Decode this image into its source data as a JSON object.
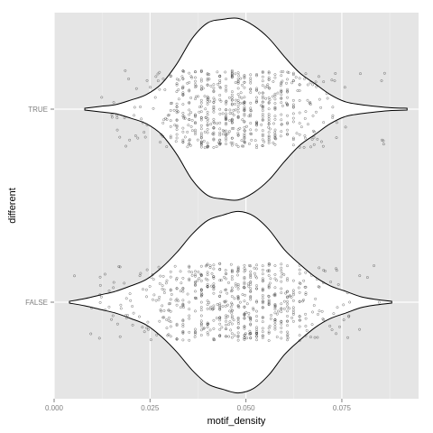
{
  "chart_data": {
    "type": "violin",
    "xlabel": "motif_density",
    "ylabel": "different",
    "xlim": [
      0.0,
      0.095
    ],
    "x_ticks": [
      0.0,
      0.025,
      0.05,
      0.075
    ],
    "x_tick_labels": [
      "0.000",
      "0.025",
      "0.050",
      "0.075"
    ],
    "categories": [
      "TRUE",
      "FALSE"
    ],
    "grid": true,
    "overlay": "jittered points",
    "series": [
      {
        "category": "TRUE",
        "range": [
          0.008,
          0.092
        ],
        "density": [
          [
            0.008,
            0.01
          ],
          [
            0.012,
            0.03
          ],
          [
            0.016,
            0.05
          ],
          [
            0.02,
            0.1
          ],
          [
            0.024,
            0.16
          ],
          [
            0.028,
            0.28
          ],
          [
            0.032,
            0.5
          ],
          [
            0.036,
            0.78
          ],
          [
            0.04,
            0.95
          ],
          [
            0.044,
            0.99
          ],
          [
            0.048,
            1.0
          ],
          [
            0.052,
            0.92
          ],
          [
            0.056,
            0.78
          ],
          [
            0.06,
            0.58
          ],
          [
            0.064,
            0.4
          ],
          [
            0.068,
            0.28
          ],
          [
            0.072,
            0.16
          ],
          [
            0.076,
            0.08
          ],
          [
            0.08,
            0.05
          ],
          [
            0.084,
            0.03
          ],
          [
            0.088,
            0.015
          ],
          [
            0.092,
            0.01
          ]
        ]
      },
      {
        "category": "FALSE",
        "range": [
          0.004,
          0.088
        ],
        "density": [
          [
            0.004,
            0.01
          ],
          [
            0.008,
            0.04
          ],
          [
            0.012,
            0.08
          ],
          [
            0.016,
            0.12
          ],
          [
            0.02,
            0.18
          ],
          [
            0.024,
            0.25
          ],
          [
            0.028,
            0.38
          ],
          [
            0.032,
            0.55
          ],
          [
            0.036,
            0.75
          ],
          [
            0.04,
            0.9
          ],
          [
            0.044,
            0.96
          ],
          [
            0.048,
            1.0
          ],
          [
            0.052,
            0.95
          ],
          [
            0.056,
            0.8
          ],
          [
            0.06,
            0.58
          ],
          [
            0.064,
            0.42
          ],
          [
            0.068,
            0.28
          ],
          [
            0.072,
            0.18
          ],
          [
            0.076,
            0.12
          ],
          [
            0.08,
            0.06
          ],
          [
            0.084,
            0.03
          ],
          [
            0.088,
            0.01
          ]
        ]
      }
    ]
  },
  "colors": {
    "panel": "#e5e5e5",
    "grid_major": "#ffffff",
    "grid_minor": "#f2f2f2",
    "violin_fill": "#ffffff",
    "violin_outline": "#000000",
    "point": "#333333"
  }
}
